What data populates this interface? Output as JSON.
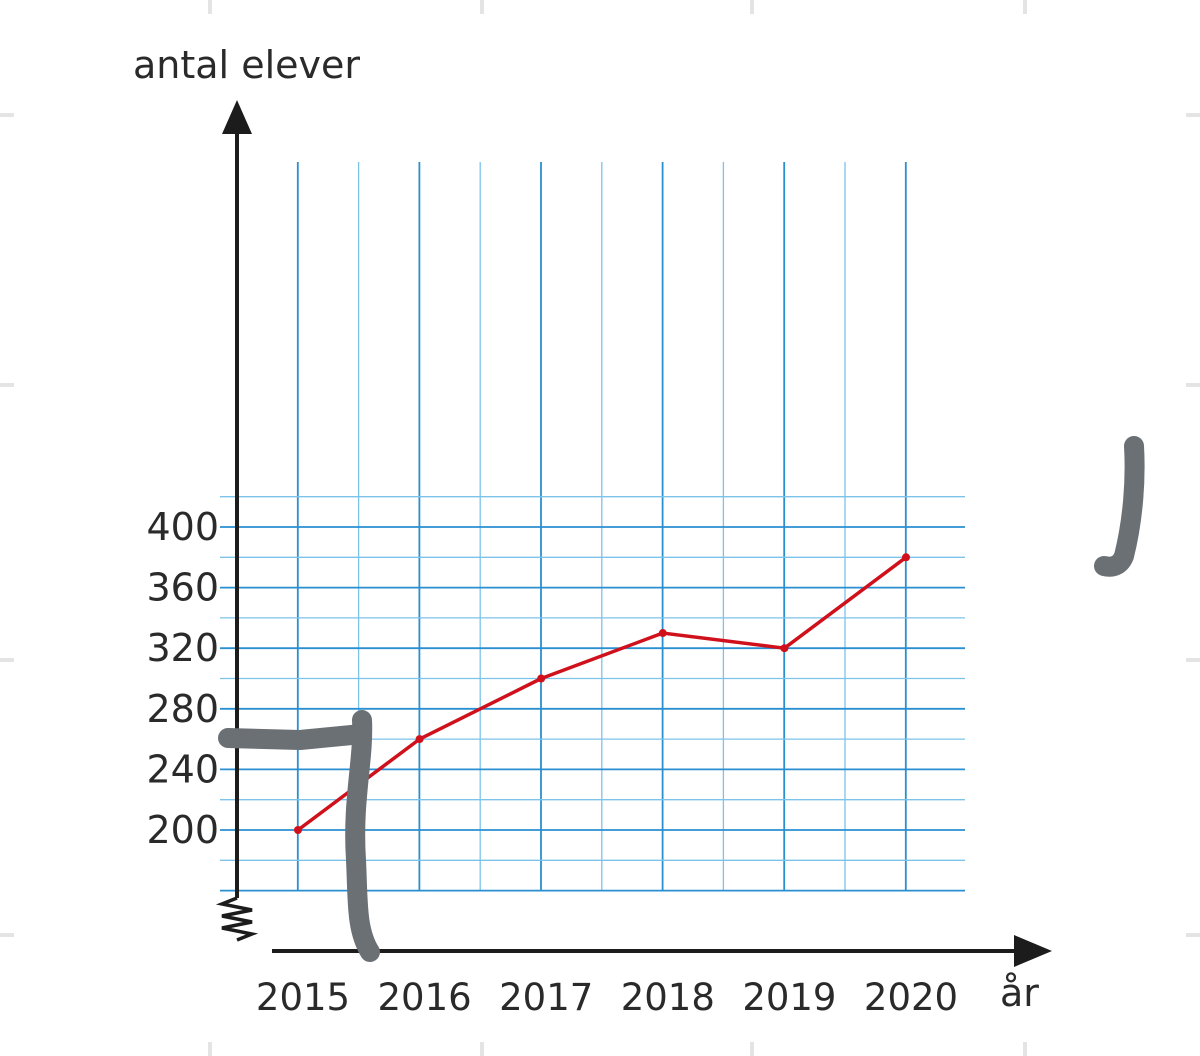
{
  "chart_data": {
    "type": "line",
    "ylabel": "antal elever",
    "xlabel": "år",
    "x": [
      "2015",
      "2016",
      "2017",
      "2018",
      "2019",
      "2020"
    ],
    "y_ticks": [
      "200",
      "240",
      "280",
      "320",
      "360",
      "400"
    ],
    "series": [
      {
        "values": [
          200,
          260,
          300,
          330,
          320,
          380
        ]
      }
    ],
    "ylim": [
      160,
      420
    ],
    "y_axis_break": true,
    "grid": true,
    "colors": {
      "line": "#d0111c",
      "grid_major": "#2a8fd0",
      "grid_minor": "#7cc3ea",
      "axis": "#1c1c1c",
      "pen_marks": "#6b7075"
    }
  }
}
